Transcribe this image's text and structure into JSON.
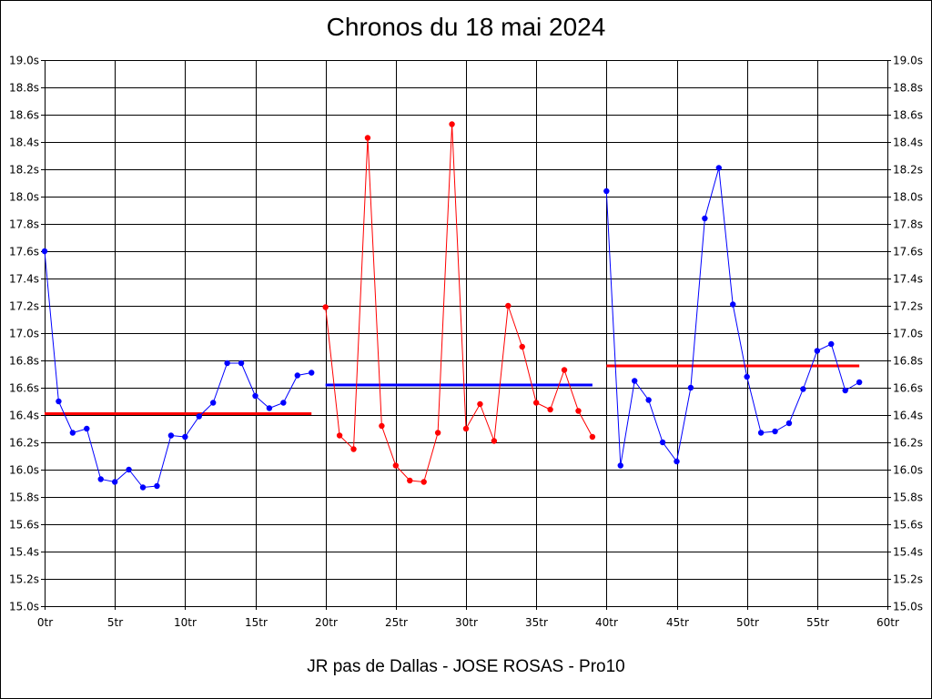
{
  "chart_data": {
    "type": "line",
    "title": "Chronos du 18 mai 2024",
    "subtitle": "JR pas de Dallas - JOSE ROSAS - Pro10",
    "xlabel": "",
    "ylabel": "",
    "xlim": [
      0,
      60
    ],
    "ylim": [
      15.0,
      19.0
    ],
    "x_ticks": [
      0,
      5,
      10,
      15,
      20,
      25,
      30,
      35,
      40,
      45,
      50,
      55,
      60
    ],
    "x_tick_labels": [
      "0tr",
      "5tr",
      "10tr",
      "15tr",
      "20tr",
      "25tr",
      "30tr",
      "35tr",
      "40tr",
      "45tr",
      "50tr",
      "55tr",
      "60tr"
    ],
    "y_ticks": [
      15.0,
      15.2,
      15.4,
      15.6,
      15.8,
      16.0,
      16.2,
      16.4,
      16.6,
      16.8,
      17.0,
      17.2,
      17.4,
      17.6,
      17.8,
      18.0,
      18.2,
      18.4,
      18.6,
      18.8,
      19.0
    ],
    "y_tick_labels": [
      "15.0s",
      "15.2s",
      "15.4s",
      "15.6s",
      "15.8s",
      "16.0s",
      "16.2s",
      "16.4s",
      "16.6s",
      "16.8s",
      "17.0s",
      "17.2s",
      "17.4s",
      "17.6s",
      "17.8s",
      "18.0s",
      "18.2s",
      "18.4s",
      "18.6s",
      "18.8s",
      "19.0s"
    ],
    "grid": true,
    "y_axis_both_sides": true,
    "series": [
      {
        "color": "#0000ff",
        "x": [
          0,
          1,
          2,
          3,
          4,
          5,
          6,
          7,
          8,
          9,
          10,
          11,
          12,
          13,
          14,
          15,
          16,
          17,
          18,
          19
        ],
        "values": [
          17.6,
          16.5,
          16.27,
          16.3,
          15.93,
          15.91,
          16.0,
          15.87,
          15.88,
          16.25,
          16.24,
          16.39,
          16.49,
          16.78,
          16.78,
          16.54,
          16.45,
          16.49,
          16.69,
          16.71
        ]
      },
      {
        "color": "#ff0000",
        "x": [
          20,
          21,
          22,
          23,
          24,
          25,
          26,
          27,
          28,
          29,
          30,
          31,
          32,
          33,
          34,
          35,
          36,
          37,
          38,
          39
        ],
        "values": [
          17.19,
          16.25,
          16.15,
          18.43,
          16.32,
          16.03,
          15.92,
          15.91,
          16.27,
          18.53,
          16.3,
          16.48,
          16.21,
          17.2,
          16.9,
          16.49,
          16.44,
          16.73,
          16.43,
          16.24
        ]
      },
      {
        "color": "#0000ff",
        "x": [
          40,
          41,
          42,
          43,
          44,
          45,
          46,
          47,
          48,
          49,
          50,
          51,
          52,
          53,
          54,
          55,
          56,
          57,
          58
        ],
        "values": [
          18.04,
          16.03,
          16.65,
          16.51,
          16.2,
          16.06,
          16.6,
          17.84,
          18.21,
          17.21,
          16.68,
          16.27,
          16.28,
          16.34,
          16.59,
          16.87,
          16.92,
          16.58,
          16.64
        ]
      }
    ],
    "averages": [
      {
        "x_start": 0,
        "x_end": 19,
        "value": 16.41,
        "color": "#ff0000"
      },
      {
        "x_start": 20,
        "x_end": 39,
        "value": 16.62,
        "color": "#0000ff"
      },
      {
        "x_start": 40,
        "x_end": 58,
        "value": 16.76,
        "color": "#ff0000"
      }
    ]
  }
}
